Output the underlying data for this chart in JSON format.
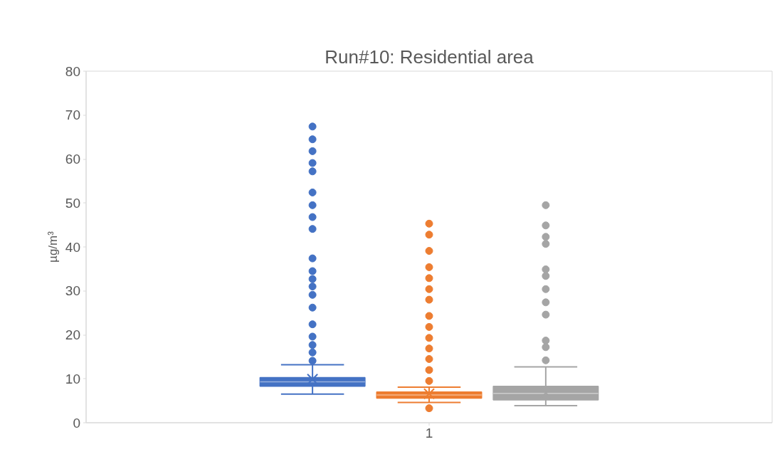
{
  "chart_data": {
    "type": "box",
    "title": "Run#10: Residential area",
    "ylabel": "µg/m³",
    "categories": [
      "1"
    ],
    "ylim": [
      0,
      80
    ],
    "yticks": [
      0,
      10,
      20,
      30,
      40,
      50,
      60,
      70,
      80
    ],
    "grid": false,
    "marker": "circle",
    "series": [
      {
        "color": "#4472c4",
        "boxes": [
          {
            "low": 6.5,
            "q1": 8.3,
            "median": 9.3,
            "q3": 10.3,
            "high": 13.2,
            "mean": 9.9,
            "outliers": [
              67.4,
              64.5,
              61.8,
              59.1,
              57.2,
              52.4,
              49.5,
              46.8,
              44.1,
              37.4,
              34.5,
              32.7,
              31.0,
              29.1,
              26.2,
              22.4,
              19.6,
              17.7,
              16.0,
              14.1
            ]
          }
        ]
      },
      {
        "color": "#ed7d31",
        "boxes": [
          {
            "low": 4.6,
            "q1": 5.6,
            "median": 6.3,
            "q3": 7.0,
            "high": 8.1,
            "mean": 6.6,
            "outliers": [
              45.3,
              42.8,
              39.1,
              35.4,
              32.9,
              30.4,
              28.0,
              24.3,
              21.8,
              19.3,
              16.9,
              14.5,
              12.0,
              9.5,
              3.3
            ]
          }
        ]
      },
      {
        "color": "#a5a5a5",
        "boxes": [
          {
            "low": 3.9,
            "q1": 5.2,
            "median": 6.7,
            "q3": 8.3,
            "high": 12.7,
            "mean": 6.8,
            "outliers": [
              49.5,
              44.9,
              42.3,
              40.7,
              34.9,
              33.4,
              30.4,
              27.4,
              24.6,
              18.7,
              17.2,
              14.2
            ]
          }
        ]
      }
    ]
  }
}
